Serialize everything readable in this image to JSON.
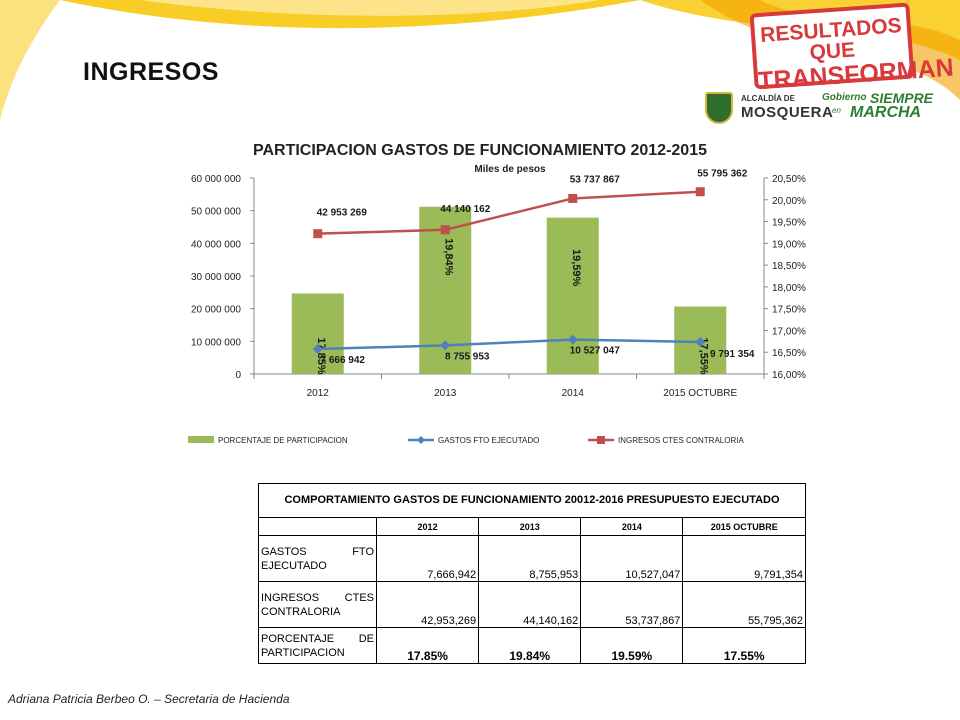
{
  "slide": {
    "title": "INGRESOS",
    "footer": "Adriana Patricia Berbeo O. – Secretaria de Hacienda"
  },
  "logos": {
    "badge_line1": "RESULTADOS QUE",
    "badge_line2": "TRANSFORMAN",
    "alcaldia_line1": "ALCALDÍA DE",
    "alcaldia_line2": "MOSQUERA",
    "gobierno_line1": "Gobierno",
    "gobierno_line2": "SIEMPRE",
    "gobierno_line3": "en",
    "gobierno_line4": "MARCHA"
  },
  "colors": {
    "bars": "#9bbb59",
    "gastos_line": "#4f81bd",
    "ingresos_line": "#c0504d",
    "accent_yellow": "#f7c600"
  },
  "chart_data": {
    "type": "bar+line",
    "title": "PARTICIPACION GASTOS DE FUNCIONAMIENTO 2012-2015",
    "subtitle": "Miles de pesos",
    "categories": [
      "2012",
      "2013",
      "2014",
      "2015 OCTUBRE"
    ],
    "series": [
      {
        "name": "PORCENTAJE DE PARTICIPACION",
        "kind": "bar",
        "axis": "right",
        "values": [
          17.85,
          19.84,
          19.59,
          17.55
        ],
        "labels": [
          "17,85%",
          "19,84%",
          "19,59%",
          "17,55%"
        ]
      },
      {
        "name": "GASTOS FTO EJECUTADO",
        "kind": "line",
        "axis": "left",
        "values": [
          7666942,
          8755953,
          10527047,
          9791354
        ],
        "labels": [
          "7 666 942",
          "8 755 953",
          "10 527 047",
          "9 791 354"
        ]
      },
      {
        "name": "INGRESOS CTES CONTRALORIA",
        "kind": "line",
        "axis": "left",
        "values": [
          42953269,
          44140162,
          53737867,
          55795362
        ],
        "labels": [
          "42 953 269",
          "44 140 162",
          "53 737 867",
          "55 795 362"
        ]
      }
    ],
    "y_left": {
      "min": 0,
      "max": 60000000,
      "ticks": [
        "0",
        "10 000 000",
        "20 000 000",
        "30 000 000",
        "40 000 000",
        "50 000 000",
        "60 000 000"
      ]
    },
    "y_right": {
      "min": 16.0,
      "max": 20.5,
      "ticks": [
        "16,00%",
        "16,50%",
        "17,00%",
        "17,50%",
        "18,00%",
        "18,50%",
        "19,00%",
        "19,50%",
        "20,00%",
        "20,50%"
      ]
    },
    "legend_position": "bottom",
    "grid": false
  },
  "table": {
    "caption": "COMPORTAMIENTO GASTOS DE FUNCIONAMIENTO 20012-2016  PRESUPUESTO EJECUTADO",
    "columns": [
      "2012",
      "2013",
      "2014",
      "2015 OCTUBRE"
    ],
    "rows": [
      {
        "label": "GASTOS FTO EJECUTADO",
        "values": [
          "7,666,942",
          "8,755,953",
          "10,527,047",
          "9,791,354"
        ]
      },
      {
        "label": "INGRESOS CTES CONTRALORIA",
        "values": [
          "42,953,269",
          "44,140,162",
          "53,737,867",
          "55,795,362"
        ]
      },
      {
        "label": "PORCENTAJE DE PARTICIPACION",
        "values": [
          "17.85%",
          "19.84%",
          "19.59%",
          "17.55%"
        ]
      }
    ]
  }
}
